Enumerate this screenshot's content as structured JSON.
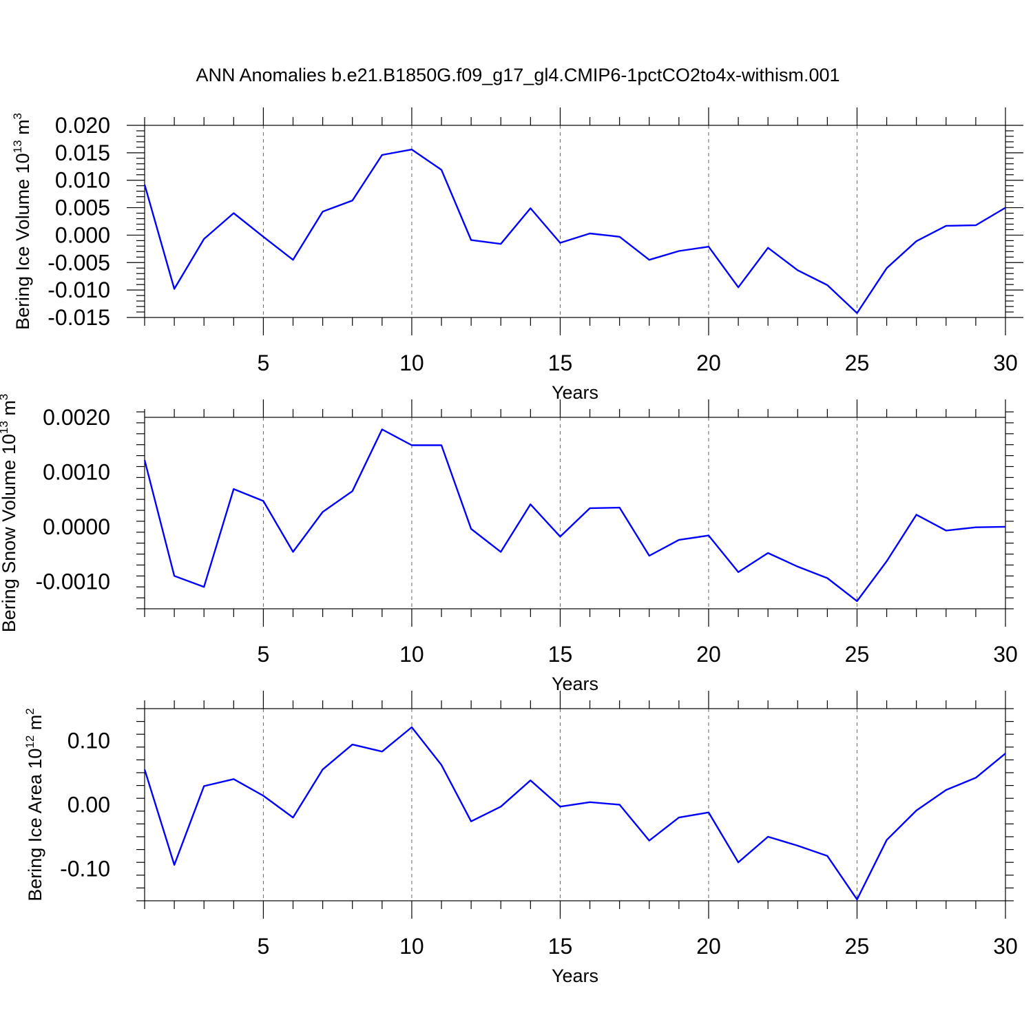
{
  "title": "ANN Anomalies b.e21.B1850G.f09_g17_gl4.CMIP6-1pctCO2to4x-withism.001",
  "chart_data": [
    {
      "type": "line",
      "title": "",
      "ylabel_base": "Bering Ice Volume 10",
      "ylabel_exp": "13",
      "ylabel_unit": " m",
      "ylabel_unit_exp": "3",
      "xlabel": "Years",
      "xlim": [
        1,
        30
      ],
      "ylim": [
        -0.015,
        0.02
      ],
      "x_ticks": [
        5,
        10,
        15,
        20,
        25,
        30
      ],
      "x_tick_labels": [
        "5",
        "10",
        "15",
        "20",
        "25",
        "30"
      ],
      "y_ticks": [
        -0.015,
        -0.01,
        -0.005,
        0.0,
        0.005,
        0.01,
        0.015,
        0.02
      ],
      "y_tick_labels": [
        "-0.015",
        "-0.010",
        "-0.005",
        "0.000",
        "0.005",
        "0.010",
        "0.015",
        "0.020"
      ],
      "grid": "vertical dashed",
      "color": "#0000ff",
      "x": [
        1,
        2,
        3,
        4,
        5,
        6,
        7,
        8,
        9,
        10,
        11,
        12,
        13,
        14,
        15,
        16,
        17,
        18,
        19,
        20,
        21,
        22,
        23,
        24,
        25,
        26,
        27,
        28,
        29,
        30
      ],
      "values": [
        0.0092,
        -0.0098,
        -0.0007,
        0.004,
        -0.0003,
        -0.0045,
        0.0043,
        0.0063,
        0.0146,
        0.0156,
        0.0119,
        -0.0009,
        -0.0016,
        0.0049,
        -0.0014,
        0.0003,
        -0.0003,
        -0.0045,
        -0.0029,
        -0.0021,
        -0.0095,
        -0.0023,
        -0.0064,
        -0.0091,
        -0.0142,
        -0.006,
        -0.0011,
        0.0017,
        0.0018,
        0.005
      ]
    },
    {
      "type": "line",
      "title": "",
      "ylabel_base": "Bering Snow Volume 10",
      "ylabel_exp": "13",
      "ylabel_unit": " m",
      "ylabel_unit_exp": "3",
      "xlabel": "Years",
      "xlim": [
        1,
        30
      ],
      "ylim": [
        -0.0015,
        0.002
      ],
      "x_ticks": [
        5,
        10,
        15,
        20,
        25,
        30
      ],
      "x_tick_labels": [
        "5",
        "10",
        "15",
        "20",
        "25",
        "30"
      ],
      "y_ticks": [
        -0.001,
        0.0,
        0.001,
        0.002
      ],
      "y_tick_labels": [
        "-0.0010",
        "0.0000",
        "0.0010",
        "0.0020"
      ],
      "grid": "vertical dashed",
      "color": "#0000ff",
      "x": [
        1,
        2,
        3,
        4,
        5,
        6,
        7,
        8,
        9,
        10,
        11,
        12,
        13,
        14,
        15,
        16,
        17,
        18,
        19,
        20,
        21,
        22,
        23,
        24,
        25,
        26,
        27,
        28,
        29,
        30
      ],
      "values": [
        0.00122,
        -0.0009,
        -0.0011,
        0.00069,
        0.00047,
        -0.00046,
        0.00027,
        0.00065,
        0.00178,
        0.00149,
        0.00149,
        -4e-05,
        -0.00046,
        0.00041,
        -0.00018,
        0.00034,
        0.00035,
        -0.00053,
        -0.00024,
        -0.00016,
        -0.00083,
        -0.00048,
        -0.00073,
        -0.00094,
        -0.00136,
        -0.00063,
        0.00022,
        -7e-05,
        -1e-05,
        0.0
      ]
    },
    {
      "type": "line",
      "title": "",
      "ylabel_base": "Bering Ice Area 10",
      "ylabel_exp": "12",
      "ylabel_unit": " m",
      "ylabel_unit_exp": "2",
      "xlabel": "Years",
      "xlim": [
        1,
        30
      ],
      "ylim": [
        -0.15,
        0.15
      ],
      "x_ticks": [
        5,
        10,
        15,
        20,
        25,
        30
      ],
      "x_tick_labels": [
        "5",
        "10",
        "15",
        "20",
        "25",
        "30"
      ],
      "y_ticks": [
        -0.1,
        0.0,
        0.1
      ],
      "y_tick_labels": [
        "-0.10",
        "0.00",
        "0.10"
      ],
      "grid": "vertical dashed",
      "color": "#0000ff",
      "x": [
        1,
        2,
        3,
        4,
        5,
        6,
        7,
        8,
        9,
        10,
        11,
        12,
        13,
        14,
        15,
        16,
        17,
        18,
        19,
        20,
        21,
        22,
        23,
        24,
        25,
        26,
        27,
        28,
        29,
        30
      ],
      "values": [
        0.055,
        -0.094,
        0.029,
        0.04,
        0.014,
        -0.02,
        0.055,
        0.094,
        0.083,
        0.121,
        0.062,
        -0.026,
        -0.003,
        0.038,
        -0.003,
        0.004,
        0.0,
        -0.056,
        -0.02,
        -0.012,
        -0.09,
        -0.05,
        -0.064,
        -0.08,
        -0.148,
        -0.055,
        -0.009,
        0.023,
        0.042,
        0.08
      ]
    }
  ]
}
